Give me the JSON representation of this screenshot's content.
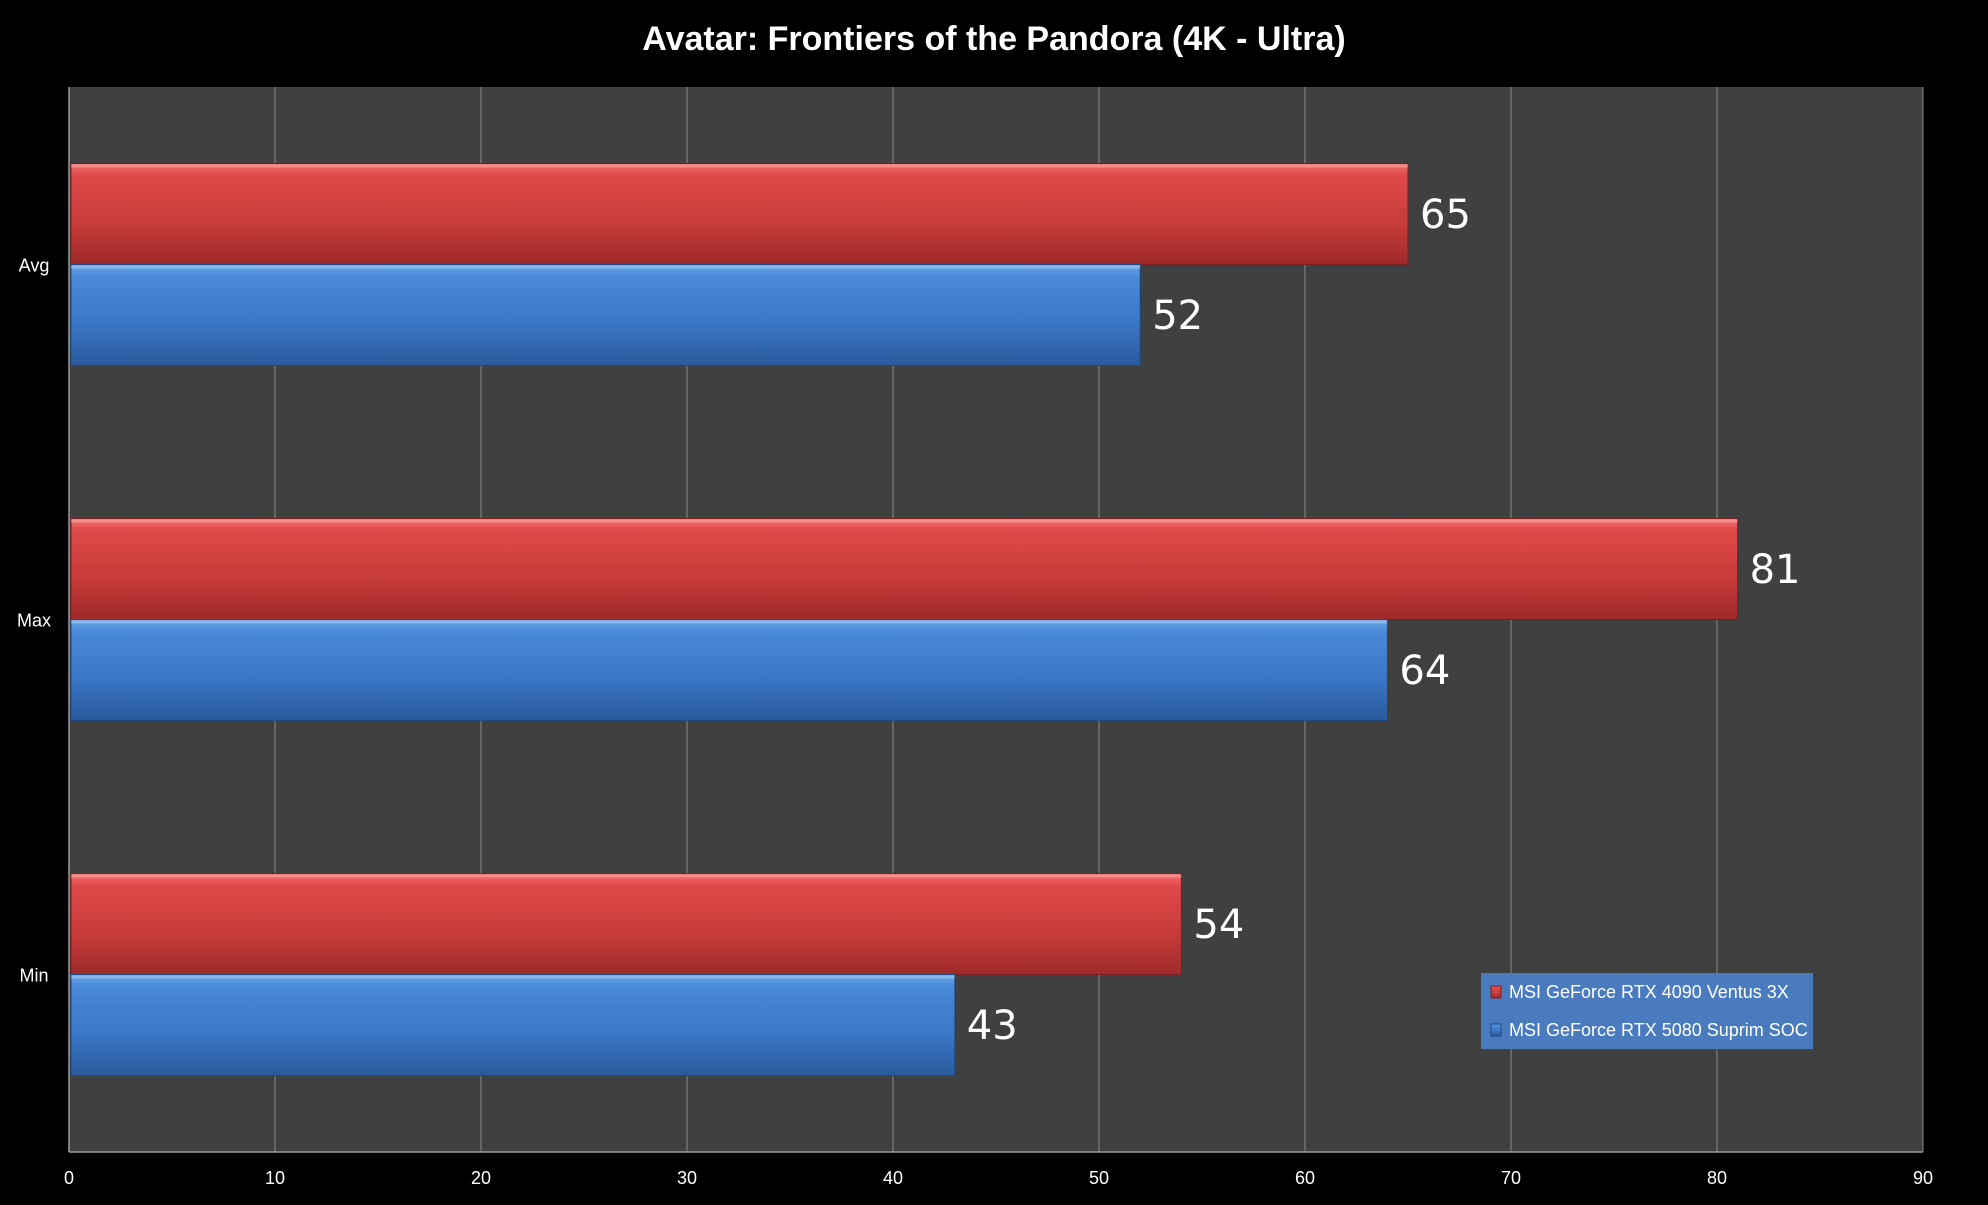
{
  "chart_data": {
    "type": "bar",
    "orientation": "horizontal",
    "title": "Avatar: Frontiers of the Pandora (4K - Ultra)",
    "categories": [
      "Avg",
      "Max",
      "Min"
    ],
    "series": [
      {
        "name": "MSI GeForce RTX 4090 Ventus 3X",
        "values": [
          65,
          81,
          54
        ],
        "color": "#d94140"
      },
      {
        "name": "MSI GeForce RTX 5080 Suprim SOC",
        "values": [
          52,
          64,
          43
        ],
        "color": "#3f80d4"
      }
    ],
    "xlim": [
      0,
      90
    ],
    "xticks": [
      0,
      10,
      20,
      30,
      40,
      50,
      60,
      70,
      80,
      90
    ],
    "grid": true,
    "legend_position": "bottom-right",
    "colors": {
      "background": "#000000",
      "plot_background": "#404040",
      "gridline": "#8a8a8a",
      "legend_background": "#4a7bbf"
    }
  }
}
